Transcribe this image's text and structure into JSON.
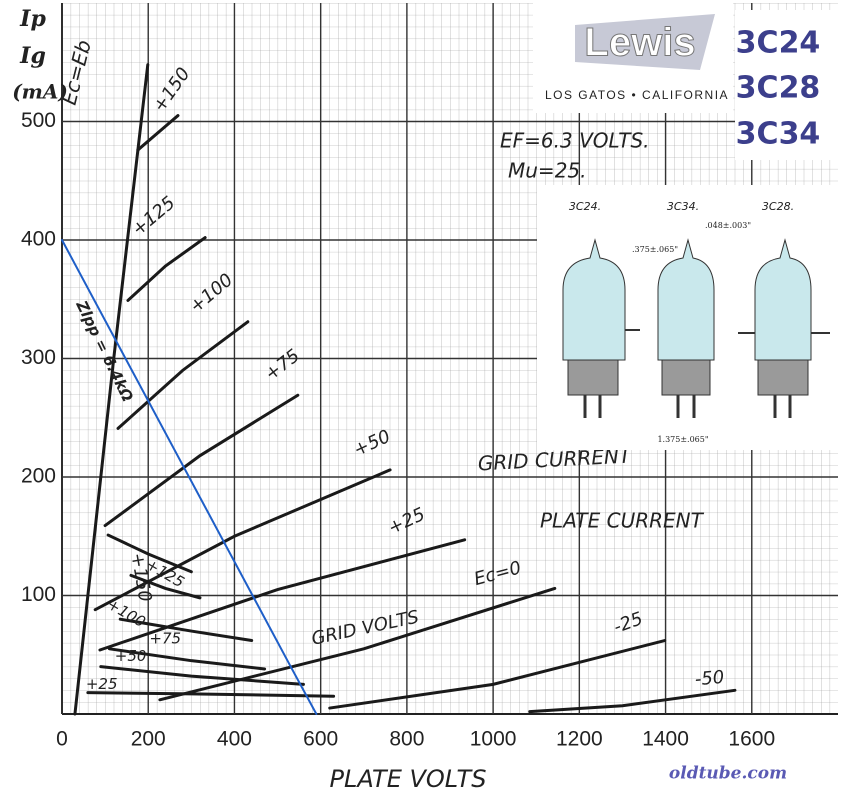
{
  "header": {
    "logo": "Lewis",
    "location": "LOS GATOS • CALIFORNIA",
    "models": [
      "3C24",
      "3C28",
      "3C34"
    ]
  },
  "chart_data": {
    "type": "line",
    "ylabel_lines": [
      "Ip",
      "Ig",
      "(mA)"
    ],
    "xlabel": "PLATE VOLTS",
    "xlim": [
      0,
      1800
    ],
    "ylim": [
      0,
      600
    ],
    "xticks": [
      0,
      200,
      400,
      600,
      800,
      1000,
      1200,
      1400,
      1600
    ],
    "yticks": [
      100,
      200,
      300,
      400,
      500
    ],
    "grid": true,
    "annotations": [
      "EF=6.3 VOLTS.",
      "Mu=25.",
      "GRID CURRENT",
      "PLATE CURRENT",
      "GRID VOLTS"
    ],
    "series": [
      {
        "name": "Ec=Eb",
        "color": "#1a1a1a",
        "x": [
          30,
          120,
          199
        ],
        "values": [
          0,
          300,
          548
        ]
      },
      {
        "name": "+150",
        "color": "#1a1a1a",
        "x": [
          176,
          269
        ],
        "values": [
          476,
          505
        ]
      },
      {
        "name": "+125",
        "color": "#1a1a1a",
        "x": [
          153,
          240,
          332
        ],
        "values": [
          349,
          378,
          402
        ]
      },
      {
        "name": "+100",
        "color": "#1a1a1a",
        "x": [
          130,
          280,
          431
        ],
        "values": [
          241,
          290,
          331
        ]
      },
      {
        "name": "+75",
        "color": "#1a1a1a",
        "x": [
          100,
          320,
          547
        ],
        "values": [
          159,
          218,
          269
        ]
      },
      {
        "name": "+50",
        "color": "#1a1a1a",
        "x": [
          77,
          400,
          761
        ],
        "values": [
          88,
          150,
          206
        ]
      },
      {
        "name": "+25",
        "color": "#1a1a1a",
        "x": [
          88,
          500,
          934
        ],
        "values": [
          54,
          105,
          147
        ]
      },
      {
        "name": "Ec=0",
        "color": "#1a1a1a",
        "x": [
          227,
          700,
          1143
        ],
        "values": [
          12,
          55,
          106
        ]
      },
      {
        "name": "-25",
        "color": "#1a1a1a",
        "x": [
          621,
          1000,
          1398
        ],
        "values": [
          5,
          25,
          62
        ]
      },
      {
        "name": "-50",
        "color": "#1a1a1a",
        "x": [
          1085,
          1300,
          1561
        ],
        "values": [
          2,
          7,
          20
        ]
      },
      {
        "name": "+150",
        "color": "#1a1a1a",
        "x": [
          107,
          200,
          300
        ],
        "values": [
          151,
          135,
          120
        ]
      },
      {
        "name": "+125",
        "color": "#1a1a1a",
        "x": [
          160,
          240,
          320
        ],
        "values": [
          117,
          106,
          98
        ]
      },
      {
        "name": "+100",
        "color": "#1a1a1a",
        "x": [
          135,
          300,
          440
        ],
        "values": [
          80,
          70,
          62
        ]
      },
      {
        "name": "+75",
        "color": "#1a1a1a",
        "x": [
          110,
          300,
          470
        ],
        "values": [
          55,
          45,
          38
        ]
      },
      {
        "name": "+50",
        "color": "#1a1a1a",
        "x": [
          90,
          300,
          560
        ],
        "values": [
          40,
          32,
          25
        ]
      },
      {
        "name": "+25",
        "color": "#1a1a1a",
        "x": [
          60,
          300,
          630
        ],
        "values": [
          18,
          17,
          15
        ]
      },
      {
        "name": "Zlpp = 6.4kΩ",
        "color": "#1f5fc8",
        "x": [
          0,
          529,
          590
        ],
        "values": [
          400,
          41,
          0
        ]
      }
    ]
  },
  "tube_drawing": {
    "labels": [
      "3C24.",
      "3C34.",
      "3C28."
    ],
    "dimensions": [
      ".375±.065\"",
      ".048±.003\"",
      "1.375±.065\""
    ]
  },
  "watermark": "oldtube.com"
}
